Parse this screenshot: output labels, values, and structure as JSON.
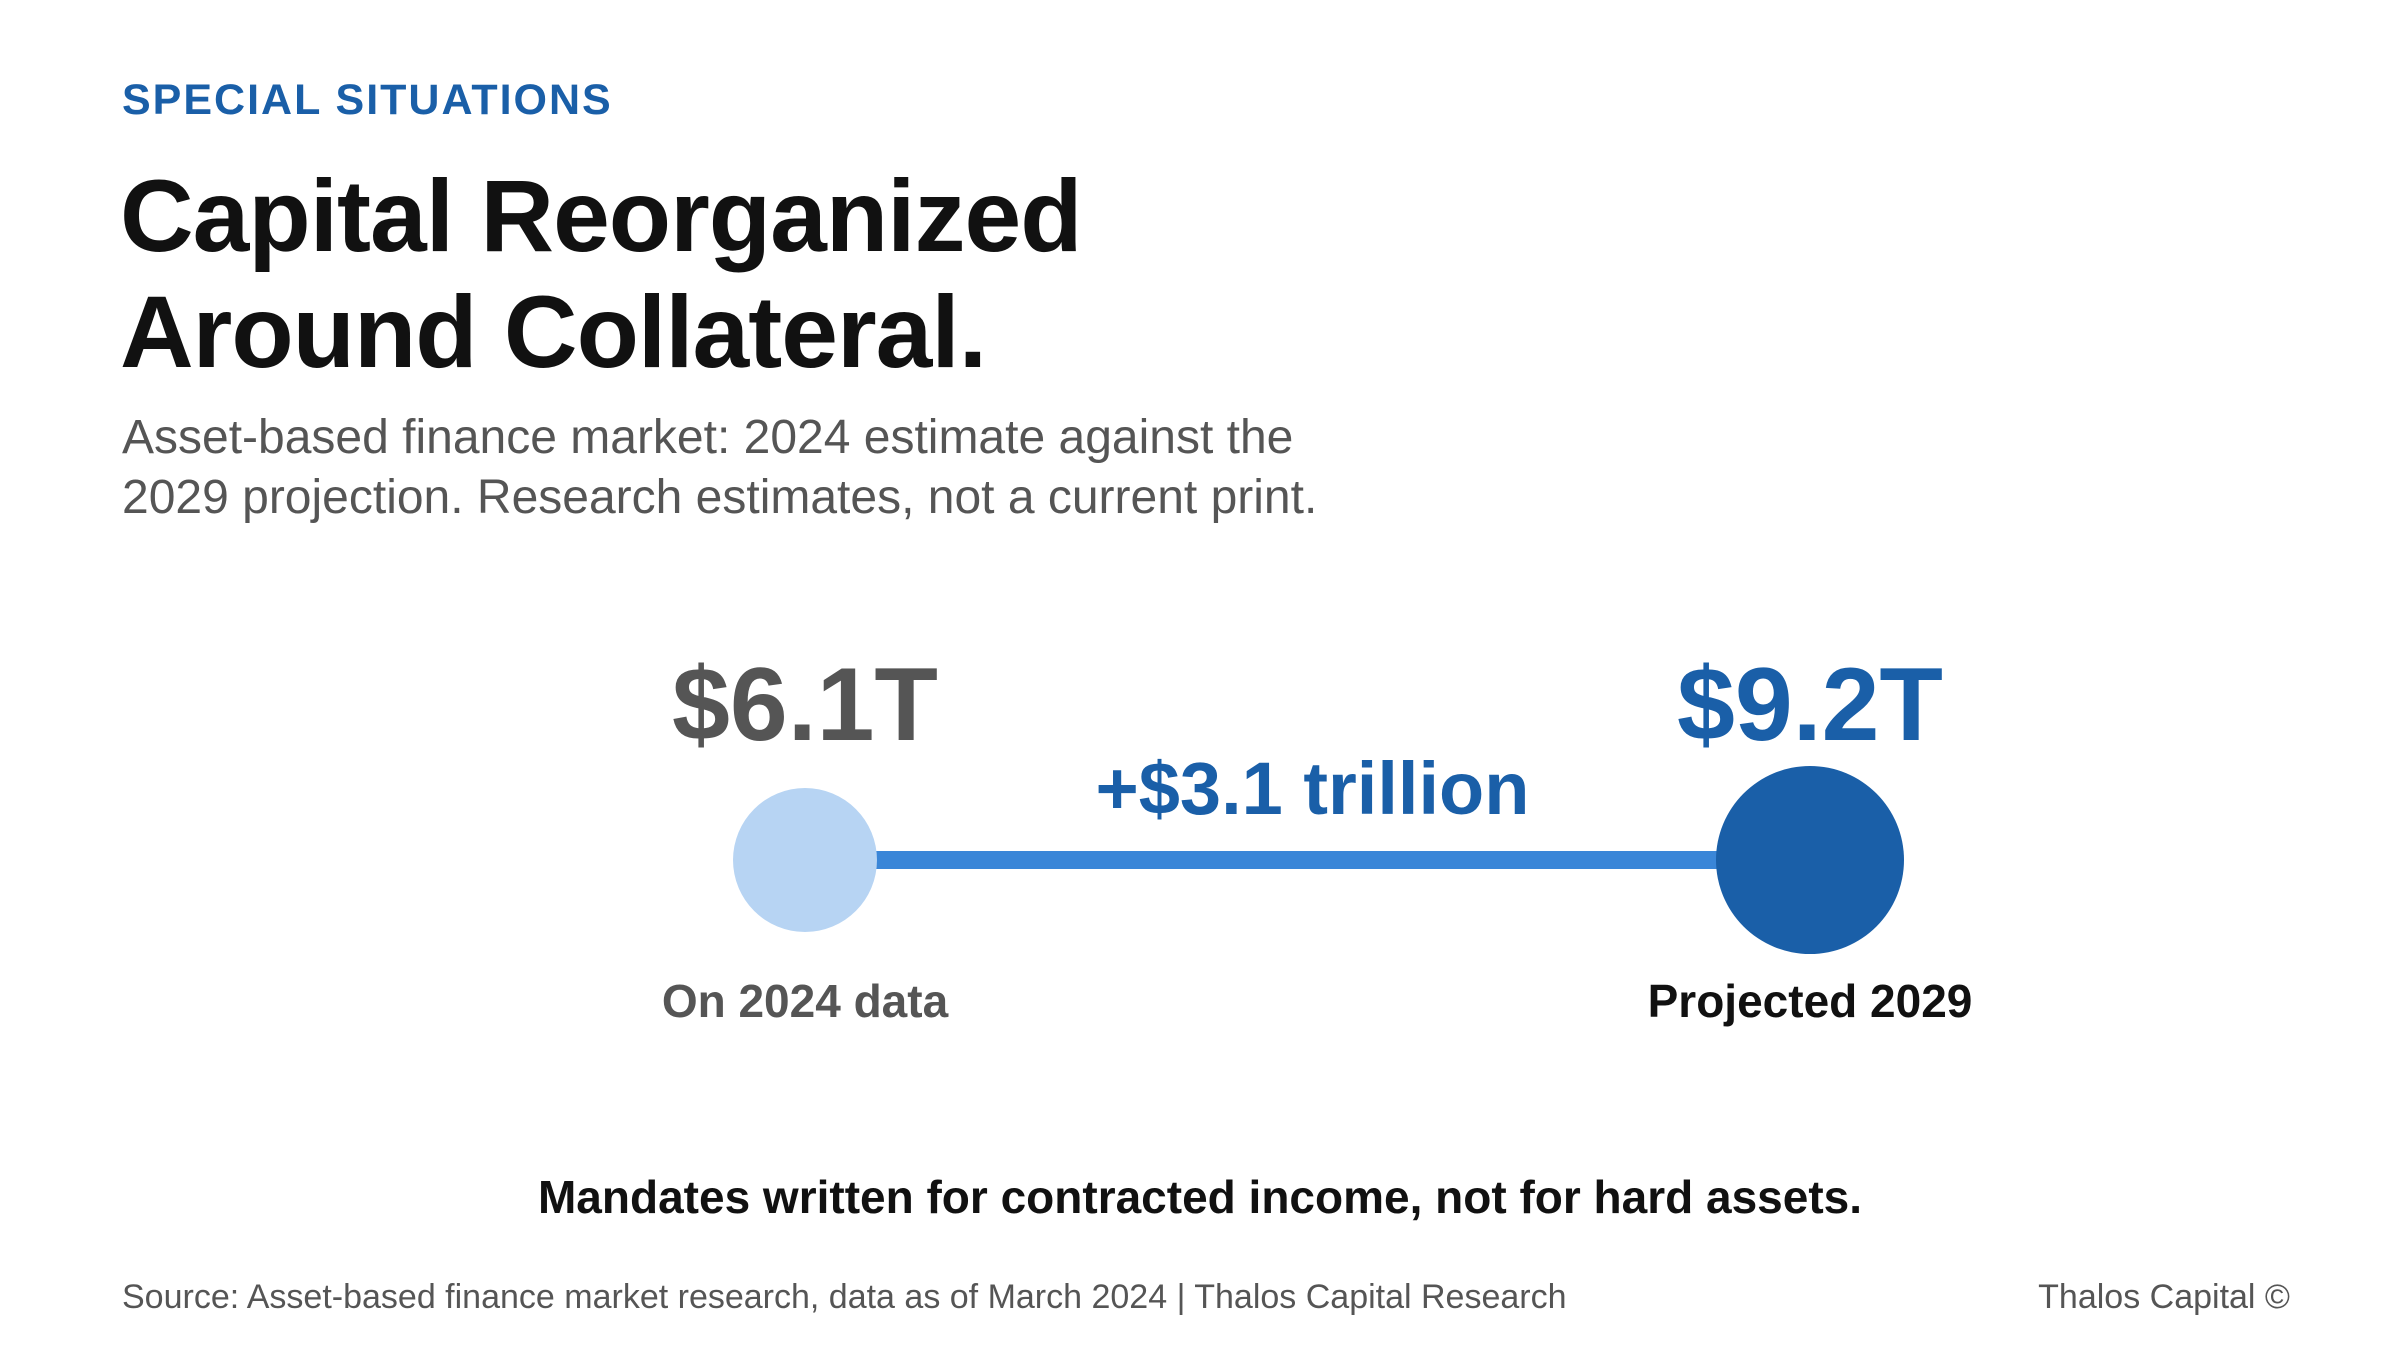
{
  "header": {
    "eyebrow": "SPECIAL SITUATIONS",
    "title_line1": "Capital Reorganized",
    "title_line2": "Around Collateral.",
    "subtitle_line1": "Asset-based finance market: 2024 estimate against the",
    "subtitle_line2": "2029 projection. Research estimates, not a current print."
  },
  "chart_data": {
    "type": "dumbbell",
    "unit": "trillion USD",
    "points": [
      {
        "label": "On 2024 data",
        "value": 6.1,
        "value_label": "$6.1T",
        "color": "#b7d4f3",
        "value_color": "#555555",
        "label_color": "#555555"
      },
      {
        "label": "Projected 2029",
        "value": 9.2,
        "value_label": "$9.2T",
        "color": "#1a5fa8",
        "value_color": "#1a5fa8",
        "label_color": "#111111"
      }
    ],
    "delta_label": "+$3.1 trillion",
    "connector_color": "#3a86d8"
  },
  "footer": {
    "tagline": "Mandates written for contracted income, not for hard assets.",
    "source": "Source: Asset-based finance market research, data as of March 2024 | Thalos Capital Research",
    "brand": "Thalos Capital ©"
  },
  "colors": {
    "accent": "#1a5fa8",
    "title": "#111111",
    "muted": "#555555"
  }
}
